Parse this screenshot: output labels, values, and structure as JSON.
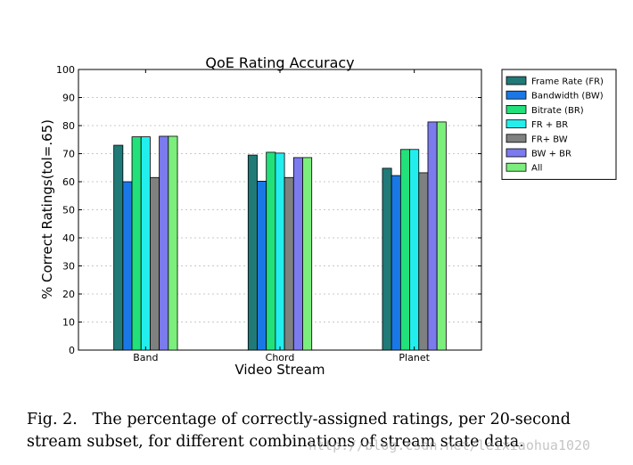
{
  "chart_data": {
    "type": "bar",
    "title": "QoE Rating Accuracy",
    "xlabel": "Video Stream",
    "ylabel": "% Correct Ratings(tol=.65)",
    "ylim": [
      0,
      100
    ],
    "yticks": [
      0,
      10,
      20,
      30,
      40,
      50,
      60,
      70,
      80,
      90,
      100
    ],
    "categories": [
      "Band",
      "Chord",
      "Planet"
    ],
    "grid": true,
    "legend_position": "outside-right-top",
    "series": [
      {
        "name": "Frame Rate (FR)",
        "color": "#1f7a78",
        "values": [
          73,
          69.5,
          64.8
        ]
      },
      {
        "name": "Bandwidth (BW)",
        "color": "#1a78e6",
        "values": [
          60,
          60.2,
          62.2
        ]
      },
      {
        "name": "Bitrate (BR)",
        "color": "#22e07a",
        "values": [
          76,
          70.5,
          71.5
        ]
      },
      {
        "name": "FR + BR",
        "color": "#22eeee",
        "values": [
          76,
          70.2,
          71.5
        ]
      },
      {
        "name": "FR+ BW",
        "color": "#7f8080",
        "values": [
          61.5,
          61.5,
          63.2
        ]
      },
      {
        "name": "BW + BR",
        "color": "#7b7bee",
        "values": [
          76.2,
          68.6,
          81.3
        ]
      },
      {
        "name": "All",
        "color": "#7cee7c",
        "values": [
          76.2,
          68.6,
          81.3
        ]
      }
    ]
  },
  "caption": "Fig. 2.   The percentage of correctly-assigned ratings, per 20-second stream subset, for different combinations of stream state data.",
  "watermark": "http://blog.csdn.net/leixiaohua1020"
}
